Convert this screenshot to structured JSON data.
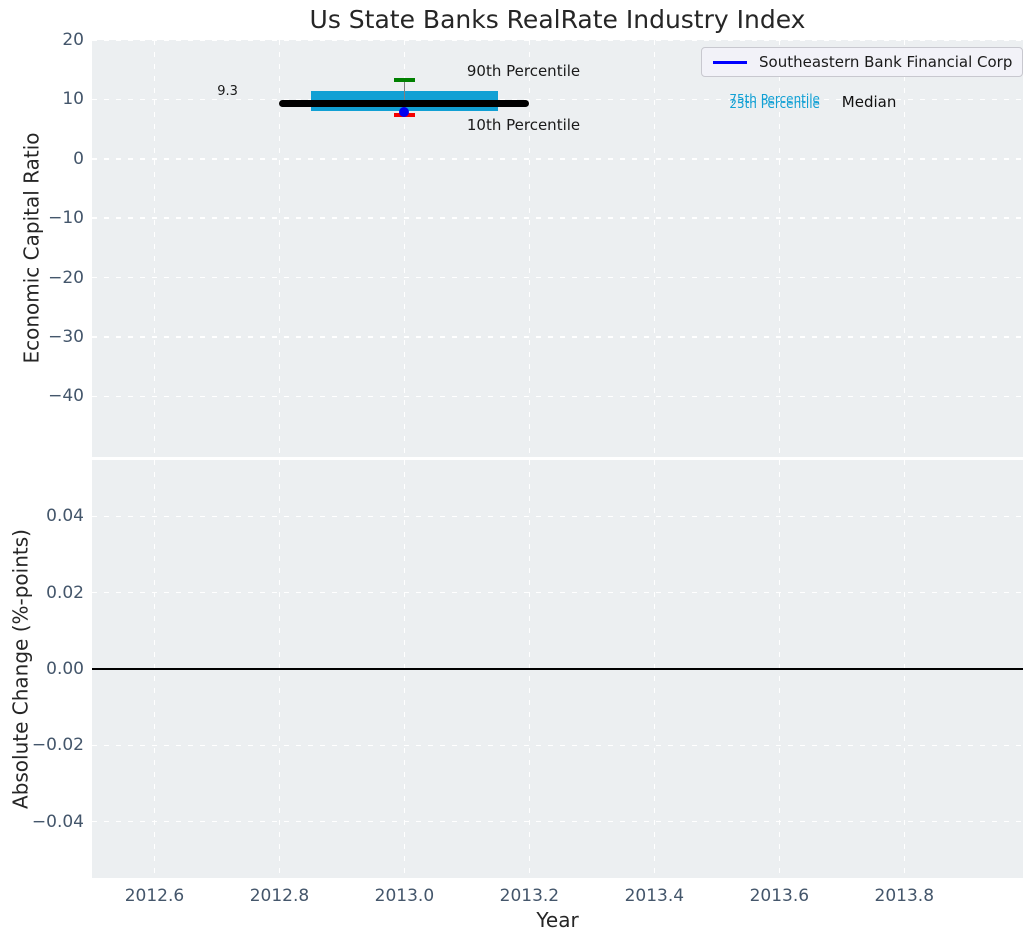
{
  "figure": {
    "colors": {
      "background": "#FFFFFF",
      "axes_bg": "#ECEFF1",
      "grid": "#FFFFFF",
      "tick_label": "#44566B",
      "text": "#262626",
      "box_fill": "#11A0D4",
      "median_line": "#000000",
      "whisker": "#7F7F7F",
      "p90_cap": "#008000",
      "p10_cap": "#F40000",
      "marker": "#0000F0",
      "legend_line": "#0000FF",
      "zero_line": "#000000"
    }
  },
  "chart_data": [
    {
      "type": "boxplot",
      "title": "Us State Banks RealRate Industry Index",
      "xlabel": "Year",
      "ylabel": "Economic Capital Ratio",
      "xlim": [
        2012.5,
        2013.99
      ],
      "ylim": [
        -50.2,
        20.0
      ],
      "xtick_values": [
        2012.6,
        2012.8,
        2013.0,
        2013.2,
        2013.4,
        2013.6,
        2013.8
      ],
      "xtick_labels": [
        "2012.6",
        "2012.8",
        "2013.0",
        "2013.2",
        "2013.4",
        "2013.6",
        "2013.8"
      ],
      "ytick_values": [
        20,
        10,
        0,
        -10,
        -20,
        -30,
        -40
      ],
      "ytick_labels": [
        "20",
        "10",
        "0",
        "−10",
        "−20",
        "−30",
        "−40"
      ],
      "grid": "white-dashed",
      "legend": {
        "position": "upper right",
        "entries": [
          {
            "label": "Southeastern Bank Financial Corp",
            "color": "#0000FF",
            "style": "line"
          }
        ]
      },
      "box": {
        "x": 2013.0,
        "p90": 13.2,
        "p75": 11.4,
        "median": 9.3,
        "p25": 8.0,
        "p10": 7.4,
        "median_span_x": [
          2012.8,
          2013.2
        ],
        "box_span_x": [
          2012.85,
          2013.15
        ],
        "cap_halfwidth_x": 0.017
      },
      "series": [
        {
          "name": "Southeastern Bank Financial Corp",
          "type": "scatter",
          "x": [
            2013.0
          ],
          "y": [
            7.9
          ],
          "color": "#0000F0"
        }
      ],
      "annotations": [
        {
          "text": "9.3",
          "x": 2012.717,
          "y": 11.3,
          "color": "#1A1A1A",
          "size": 13,
          "align": "center",
          "name": "median-value-label"
        },
        {
          "text": "90th Percentile",
          "x": 2013.1,
          "y": 14.8,
          "color": "#1A1A1A",
          "size": 15,
          "align": "left",
          "name": "p90-label"
        },
        {
          "text": "10th Percentile",
          "x": 2013.1,
          "y": 5.7,
          "color": "#1A1A1A",
          "size": 15,
          "align": "left",
          "name": "p10-label"
        },
        {
          "text": "75th Percentile",
          "x": 2013.52,
          "y": 10.0,
          "color": "#11A0D4",
          "size": 12,
          "align": "left",
          "name": "p75-label"
        },
        {
          "text": "25th Percentile",
          "x": 2013.52,
          "y": 9.3,
          "color": "#11A0D4",
          "size": 12,
          "align": "left",
          "name": "p25-label"
        },
        {
          "text": "Median",
          "x": 2013.7,
          "y": 9.5,
          "color": "#111111",
          "size": 15,
          "align": "left",
          "name": "median-label"
        }
      ]
    },
    {
      "type": "line",
      "xlabel": "Year",
      "ylabel": "Absolute Change (%-points)",
      "xlim": [
        2012.5,
        2013.99
      ],
      "ylim": [
        -0.0548,
        0.0548
      ],
      "xtick_values": [
        2012.6,
        2012.8,
        2013.0,
        2013.2,
        2013.4,
        2013.6,
        2013.8
      ],
      "xtick_labels": [
        "2012.6",
        "2012.8",
        "2013.0",
        "2013.2",
        "2013.4",
        "2013.6",
        "2013.8"
      ],
      "ytick_values": [
        0.04,
        0.02,
        0.0,
        -0.02,
        -0.04
      ],
      "ytick_labels": [
        "0.04",
        "0.02",
        "0.00",
        "−0.02",
        "−0.04"
      ],
      "grid": "white-dashed",
      "zero_line_y": 0.0,
      "series": []
    }
  ]
}
